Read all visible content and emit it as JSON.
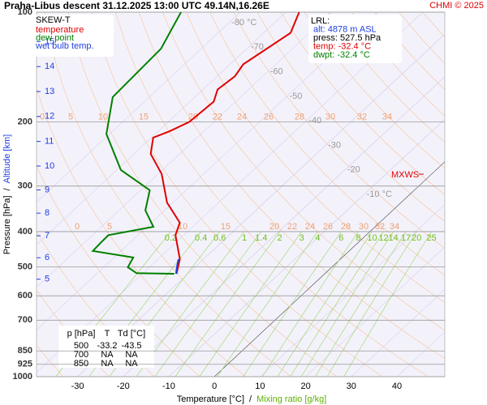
{
  "chart_data": {
    "type": "skew-t",
    "title": "Praha-Libus   descent   31.12.2025 13:00 UTC   49.14N,16.26E",
    "copyright": "CHMI © 2025",
    "x_label": "Temperature [°C]",
    "x2_label": "Mixing ratio [g/kg]",
    "y_label": "Pressure [hPa]",
    "y2_label": "Altitude [km]",
    "label_separator": "/",
    "legend_title": "SKEW-T",
    "xlim": [
      -39,
      50.5
    ],
    "xticks": [
      -30,
      -20,
      -10,
      0,
      10,
      20,
      30,
      40
    ],
    "ylim": [
      1000,
      100
    ],
    "log_y": true,
    "yticks": [
      100,
      200,
      300,
      400,
      500,
      600,
      700,
      850,
      925,
      1000
    ],
    "altitude_ticks": [
      5,
      6,
      7,
      8,
      9,
      10,
      11,
      12,
      13,
      14,
      15
    ],
    "grid": true,
    "series": [
      {
        "name": "temperature",
        "color": "#e00000",
        "pressure": [
          522,
          476,
          409,
          378,
          333,
          278,
          245,
          221,
          212,
          200,
          176,
          163,
          150,
          139,
          114,
          100
        ],
        "values": [
          -32.5,
          -35.2,
          -41.8,
          -43.8,
          -51.3,
          -59.2,
          -66.3,
          -69.6,
          -67.5,
          -65.4,
          -64.8,
          -66.8,
          -66.1,
          -67.1,
          -64.1,
          -67.1
        ]
      },
      {
        "name": "dew point",
        "color": "#008000",
        "pressure": [
          522,
          520,
          501,
          471,
          452,
          430,
          409,
          388,
          350,
          308,
          271,
          216,
          171,
          147,
          126,
          100
        ],
        "values": [
          -33,
          -41.4,
          -44.7,
          -45.8,
          -56.2,
          -56.4,
          -56.5,
          -48.6,
          -54.2,
          -58,
          -69.1,
          -80.7,
          -88,
          -88.4,
          -88.8,
          -93
        ]
      },
      {
        "name": "wet bulb temp.",
        "color": "#2040e0",
        "pressure": [
          522,
          500,
          476
        ],
        "values": [
          -32.6,
          -34,
          -35.5
        ]
      }
    ],
    "isotherm_labels": [
      {
        "value": -80,
        "label": "-80 °C"
      },
      -70,
      -60,
      -50,
      -40,
      -30,
      -20,
      {
        "value": -10,
        "label": "-10 °C"
      }
    ],
    "mixing_ratio_labels": [
      0.2,
      0.4,
      0.6,
      1,
      1.4,
      2,
      3,
      4,
      6,
      8,
      10,
      12,
      14,
      17,
      20,
      25
    ],
    "moist_adiabat_labels": [
      0,
      5,
      10,
      15,
      20,
      22,
      24,
      26,
      28,
      30,
      32,
      34
    ],
    "annotation": "MXWS",
    "lrl": [
      "LRL:",
      "alt: 4878 m ASL",
      "press: 527.5 hPa",
      "temp: -32.4 °C",
      "dwpt: -32.4 °C"
    ],
    "table": {
      "header": [
        "p [hPa]",
        "T",
        "Td [°C]"
      ],
      "rows": [
        [
          500,
          -33.2,
          -43.5
        ],
        [
          700,
          "NA",
          "NA"
        ],
        [
          850,
          "NA",
          "NA"
        ]
      ]
    }
  }
}
